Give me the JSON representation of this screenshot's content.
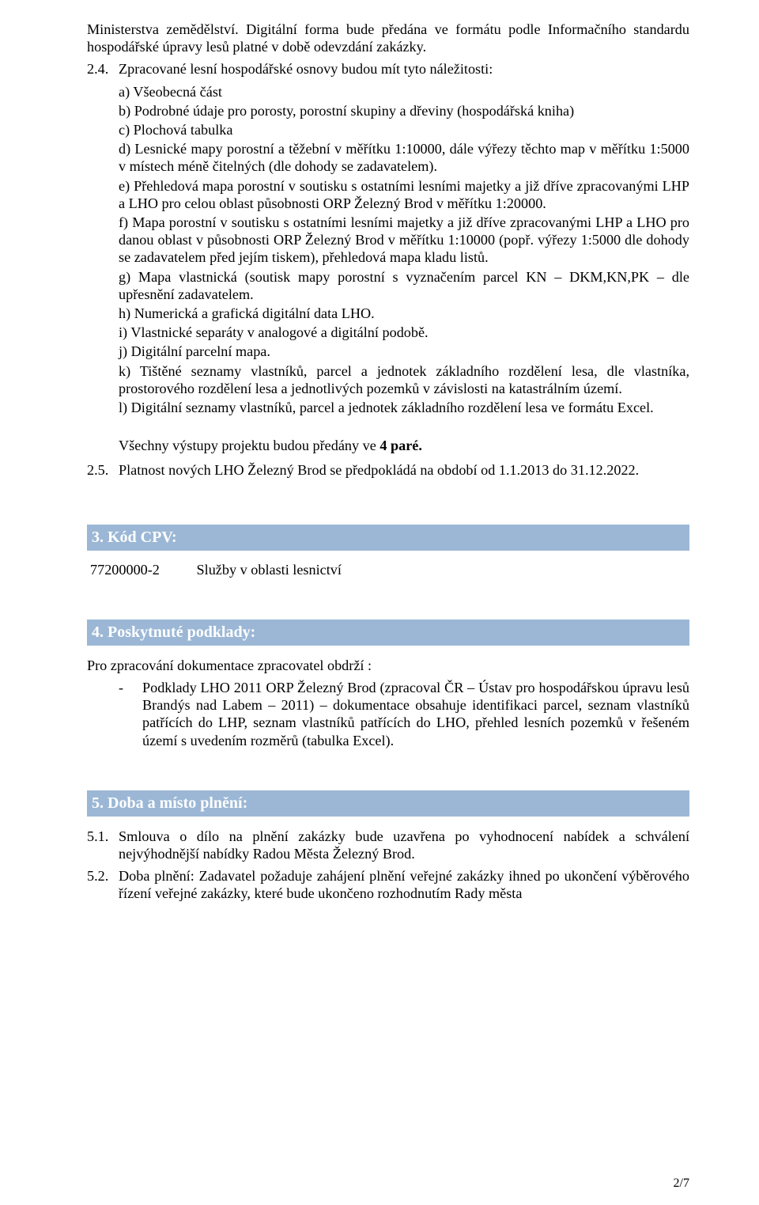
{
  "intro_tail": "Ministerstva zemědělství. Digitální forma bude předána ve formátu podle Informačního standardu hospodářské úpravy lesů platné v době odevzdání zakázky.",
  "s24": {
    "num": "2.4.",
    "lead": "Zpracované lesní hospodářské osnovy budou mít tyto náležitosti:",
    "items": {
      "a": "a) Všeobecná část",
      "b": "b) Podrobné údaje pro porosty, porostní skupiny a dřeviny (hospodářská kniha)",
      "c": "c) Plochová tabulka",
      "d": "d) Lesnické mapy porostní a těžební v měřítku 1:10000, dále výřezy těchto map v měřítku 1:5000 v místech méně čitelných (dle dohody se zadavatelem).",
      "e": "e) Přehledová mapa porostní v soutisku s ostatními lesními majetky a již dříve zpracovanými LHP a LHO pro celou oblast působnosti ORP Železný Brod v měřítku 1:20000.",
      "f": "f) Mapa porostní v soutisku s ostatními lesními majetky a již dříve zpracovanými LHP a LHO pro danou oblast v působnosti ORP Železný Brod v měřítku 1:10000 (popř. výřezy 1:5000 dle dohody se zadavatelem před jejím tiskem), přehledová mapa kladu listů.",
      "g": "g) Mapa vlastnická (soutisk mapy porostní s vyznačením parcel KN – DKM,KN,PK – dle upřesnění zadavatelem.",
      "h": "h) Numerická a grafická digitální data LHO.",
      "i": "i)  Vlastnické separáty v analogové a digitální podobě.",
      "j": "j)  Digitální parcelní mapa.",
      "k": "k) Tištěné seznamy vlastníků, parcel a jednotek základního rozdělení lesa, dle vlastníka, prostorového rozdělení lesa a jednotlivých pozemků v závislosti na katastrálním území.",
      "l": "l) Digitální seznamy vlastníků, parcel a jednotek základního rozdělení lesa ve formátu Excel."
    },
    "outputs_prefix": "Všechny výstupy projektu budou předány ve ",
    "outputs_bold": "4 paré.",
    "outputs_suffix": ""
  },
  "s25": {
    "num": "2.5.",
    "text": "Platnost nových LHO Železný Brod se předpokládá na období od 1.1.2013 do 31.12.2022."
  },
  "sec3": {
    "title": "3. Kód CPV:",
    "code": "77200000-2",
    "label": "Služby v oblasti lesnictví"
  },
  "sec4": {
    "title": "4. Poskytnuté podklady:",
    "lead": "Pro zpracování dokumentace zpracovatel obdrží :",
    "item": "Podklady LHO 2011 ORP Železný Brod (zpracoval ČR – Ústav pro hospodářskou úpravu lesů Brandýs nad Labem – 2011) – dokumentace obsahuje identifikaci parcel, seznam vlastníků patřících do LHP, seznam vlastníků patřících do LHO, přehled lesních pozemků v řešeném území s uvedením rozměrů (tabulka Excel)."
  },
  "sec5": {
    "title": "5. Doba a místo plnění:",
    "p1_num": "5.1.",
    "p1": "Smlouva o dílo na plnění zakázky bude uzavřena po vyhodnocení nabídek a schválení nejvýhodnější nabídky Radou Města Železný Brod.",
    "p2_num": "5.2.",
    "p2": "Doba plnění: Zadavatel požaduje zahájení plnění veřejné zakázky ihned po ukončení výběrového řízení veřejné zakázky, které bude ukončeno rozhodnutím Rady města"
  },
  "footer": "2/7",
  "colors": {
    "header_bg": "#9bb7d5",
    "header_fg": "#ffffff",
    "text": "#000000",
    "page_bg": "#ffffff"
  }
}
